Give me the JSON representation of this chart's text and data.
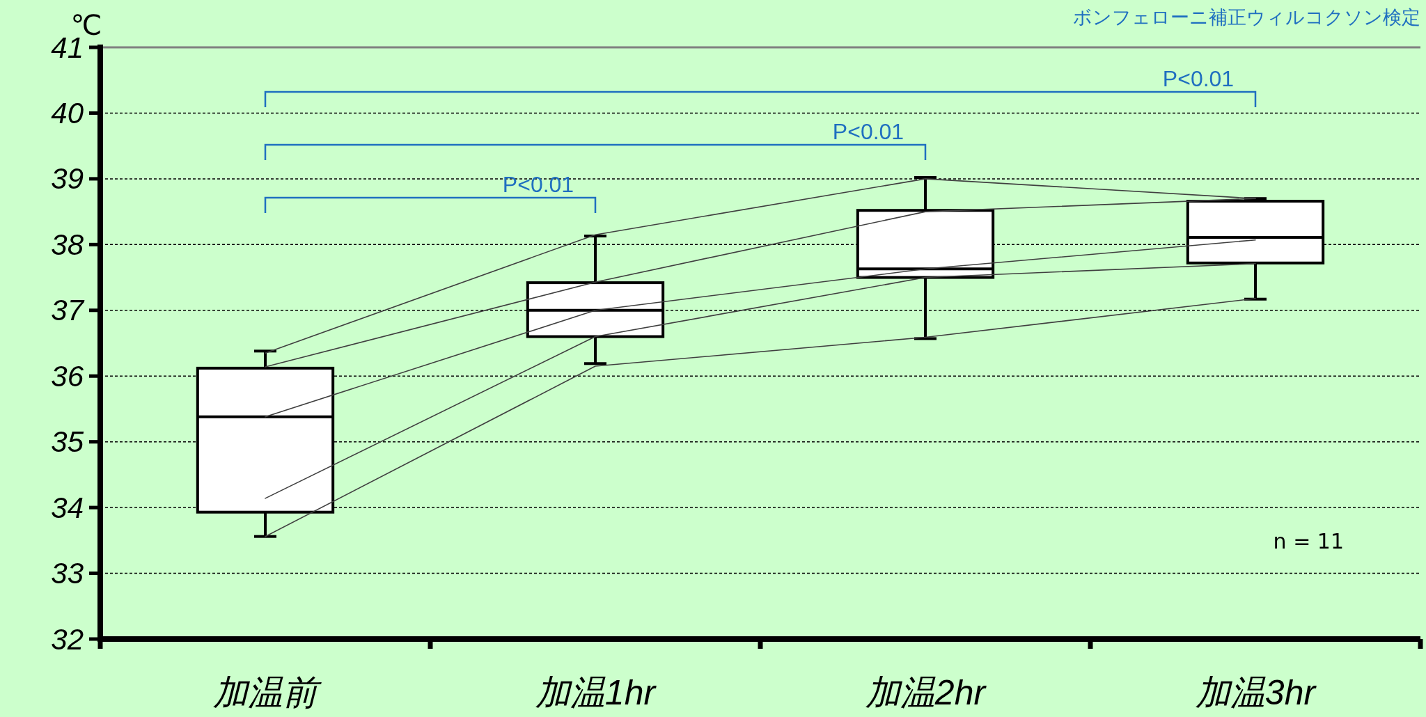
{
  "chart_data": {
    "type": "box",
    "title": "ボンフェローニ補正ウィルコクソン検定",
    "ylabel": "℃",
    "annotations": [
      "P<0.01",
      "P<0.01",
      "P<0.01",
      "n = 11"
    ],
    "categories": [
      "加温前",
      "加温1hr",
      "加温2hr",
      "加温3hr"
    ],
    "boxes": [
      {
        "low": 33.56,
        "q1": 33.93,
        "median": 35.38,
        "q3": 36.12,
        "high": 36.38
      },
      {
        "low": 36.19,
        "q1": 36.6,
        "median": 37.0,
        "q3": 37.42,
        "high": 38.13
      },
      {
        "low": 36.57,
        "q1": 37.5,
        "median": 37.63,
        "q3": 38.52,
        "high": 39.02
      },
      {
        "low": 37.17,
        "q1": 37.72,
        "median": 38.11,
        "q3": 38.66,
        "high": 38.7
      }
    ],
    "series": [
      {
        "type": "line",
        "color": "#404040",
        "values": [
          36.35,
          38.15,
          39.0,
          38.7
        ]
      },
      {
        "type": "line",
        "color": "#404040",
        "values": [
          36.14,
          37.43,
          38.5,
          38.7
        ]
      },
      {
        "type": "line",
        "color": "#404040",
        "values": [
          35.38,
          37.0,
          37.63,
          38.07
        ]
      },
      {
        "type": "line",
        "color": "#404040",
        "values": [
          34.14,
          36.6,
          37.5,
          37.71
        ]
      },
      {
        "type": "line",
        "color": "#404040",
        "values": [
          33.56,
          36.15,
          36.59,
          37.18
        ]
      }
    ],
    "ylim": [
      32,
      41
    ],
    "yticks": [
      32,
      33,
      34,
      35,
      36,
      37,
      38,
      39,
      40,
      41
    ],
    "grid": "y"
  }
}
